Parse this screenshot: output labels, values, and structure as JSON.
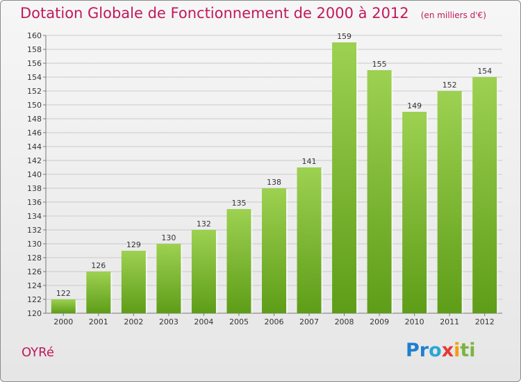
{
  "header": {
    "title": "Dotation Globale de Fonctionnement de 2000 à 2012",
    "unit": "(en milliers d'€)"
  },
  "footer": {
    "commune": "OYRé",
    "brand_letters": [
      "P",
      "r",
      "o",
      "x",
      "i",
      "t",
      "i"
    ]
  },
  "colors": {
    "title": "#c2185b",
    "bar_top": "#9dd151",
    "bar_bottom": "#5e9d18",
    "brand": [
      "#1f7fd0",
      "#1f7fd0",
      "#2aa7d6",
      "#e53935",
      "#f39c12",
      "#7cb342",
      "#7cb342"
    ]
  },
  "chart_data": {
    "type": "bar",
    "categories": [
      "2000",
      "2001",
      "2002",
      "2003",
      "2004",
      "2005",
      "2006",
      "2007",
      "2008",
      "2009",
      "2010",
      "2011",
      "2012"
    ],
    "values": [
      122,
      126,
      129,
      130,
      132,
      135,
      138,
      141,
      159,
      155,
      149,
      152,
      154
    ],
    "ylim": [
      120,
      160
    ],
    "yticks": [
      120,
      122,
      124,
      126,
      128,
      130,
      132,
      134,
      136,
      138,
      140,
      142,
      144,
      146,
      148,
      150,
      152,
      154,
      156,
      158,
      160
    ],
    "grid": true,
    "legend": "none"
  }
}
